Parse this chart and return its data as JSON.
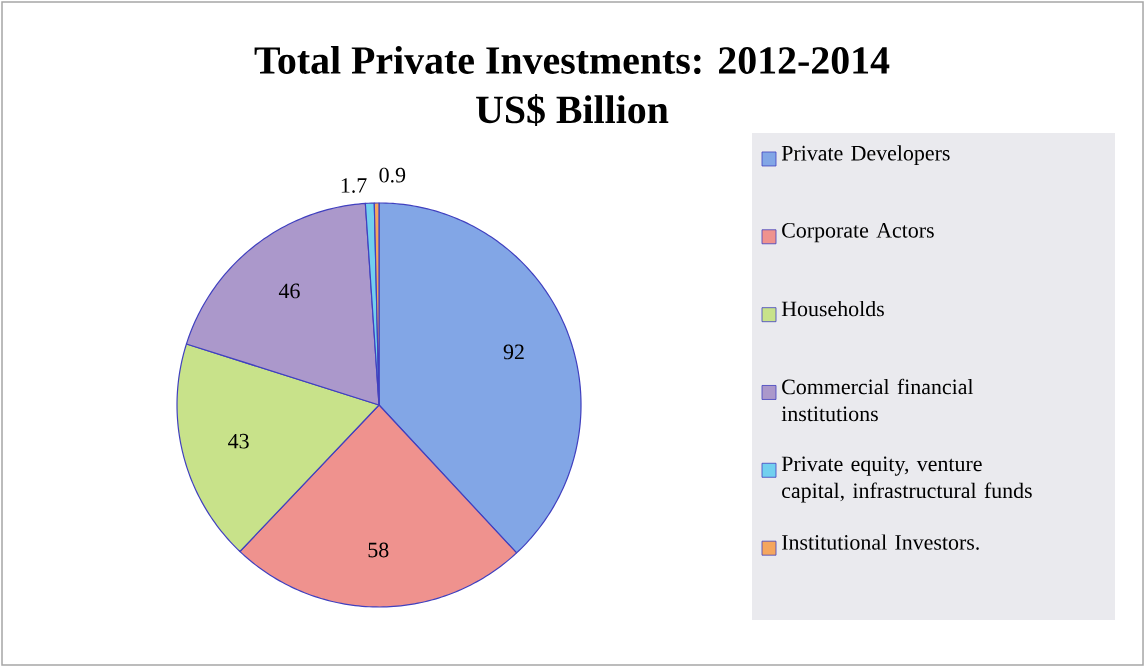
{
  "chart_data": {
    "type": "pie",
    "title": "Total Private Investments: 2012-2014",
    "subtitle": "US$ Billion",
    "categories": [
      "Private Developers",
      "Corporate Actors",
      "Households",
      "Commercial financial institutions",
      "Private equity, venture capital, infrastructural funds",
      "Institutional Investors."
    ],
    "values": [
      92,
      58,
      43,
      46,
      1.7,
      0.9
    ],
    "colors": [
      "#82a6e6",
      "#ef928e",
      "#c8e28a",
      "#ab98cb",
      "#72d0ef",
      "#f5a65e"
    ],
    "data_labels": true,
    "legend": "right"
  }
}
